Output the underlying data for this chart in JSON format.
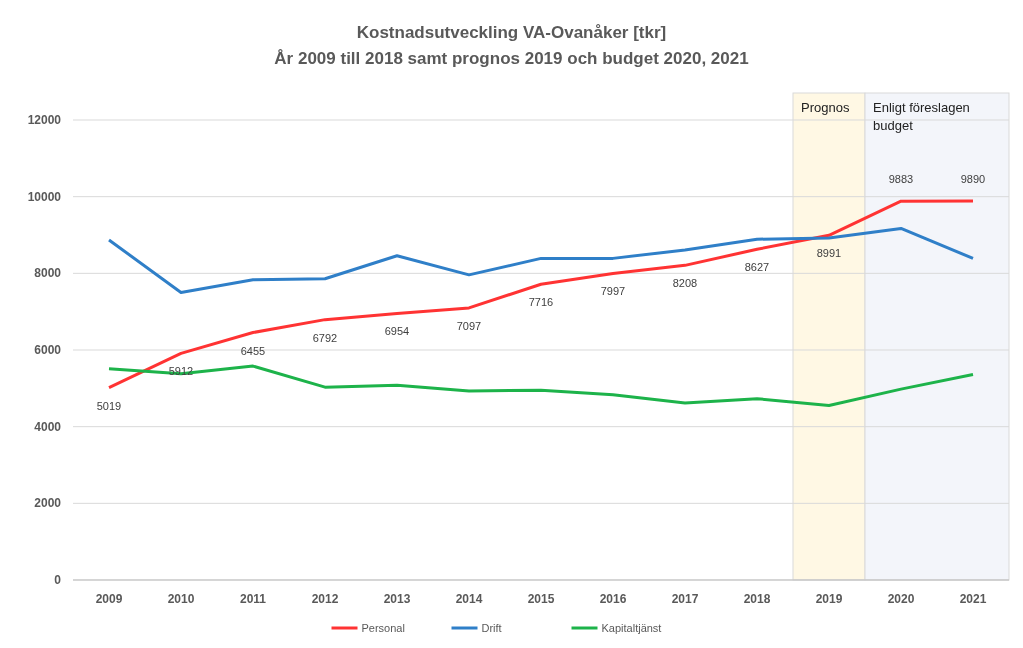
{
  "chart_data": {
    "type": "line",
    "title": "Kostnadsutveckling VA-Ovanåker [tkr]",
    "subtitle": "År 2009 till 2018 samt prognos 2019 och budget 2020, 2021",
    "categories": [
      "2009",
      "2010",
      "2011",
      "2012",
      "2013",
      "2014",
      "2015",
      "2016",
      "2017",
      "2018",
      "2019",
      "2020",
      "2021"
    ],
    "series": [
      {
        "name": "Personal",
        "color": "#ff3333",
        "values": [
          5019,
          5912,
          6455,
          6792,
          6954,
          7097,
          7716,
          7997,
          8208,
          8627,
          8991,
          9883,
          9890
        ],
        "value_labels": [
          "5019",
          "5912",
          "6455",
          "6792",
          "6954",
          "7097",
          "7716",
          "7997",
          "8208",
          "8627",
          "8991",
          "9883",
          "9890"
        ]
      },
      {
        "name": "Drift",
        "color": "#2f7fc8",
        "values": [
          8870,
          7500,
          7830,
          7860,
          8460,
          7960,
          8390,
          8390,
          8610,
          8890,
          8920,
          9170,
          8390
        ]
      },
      {
        "name": "Kapitaltjänst",
        "color": "#1db34a",
        "values": [
          5510,
          5380,
          5580,
          5030,
          5080,
          4930,
          4950,
          4830,
          4620,
          4730,
          4550,
          4980,
          5360
        ]
      }
    ],
    "ylim": [
      0,
      12000
    ],
    "yticks": [
      0,
      2000,
      4000,
      6000,
      8000,
      10000,
      12000
    ],
    "grid": "y",
    "legend": "bottom",
    "marker": "none",
    "line_style": "solid",
    "bands": [
      {
        "axis": "x",
        "from": "2019",
        "to": "2019",
        "label": "Prognos",
        "color": "#fff8e4"
      },
      {
        "axis": "x",
        "from": "2020",
        "to": "2021",
        "label": "Enligt föreslagen budget",
        "color": "#f3f5fa"
      }
    ]
  }
}
